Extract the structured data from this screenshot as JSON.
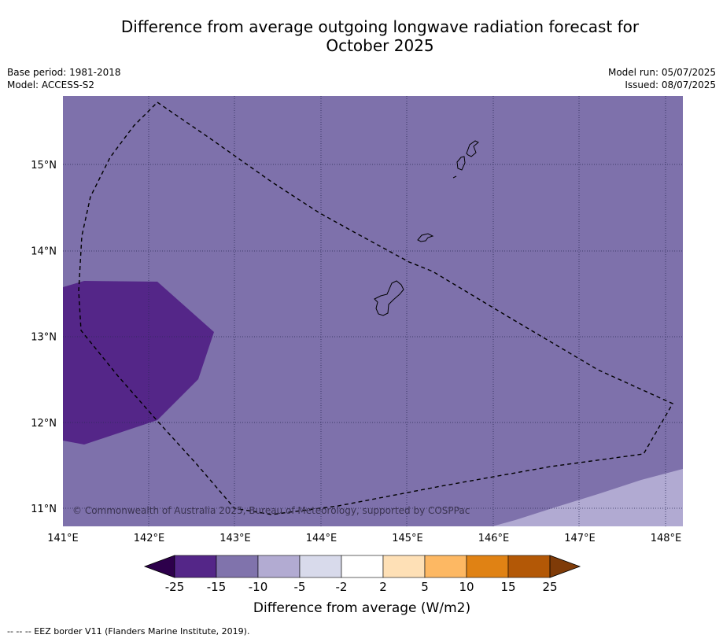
{
  "title": {
    "line1": "Difference from average outgoing longwave radiation forecast for",
    "line2": "October 2025"
  },
  "meta": {
    "base_period": "Base period: 1981-2018",
    "model": "Model: ACCESS-S2",
    "model_run": "Model run: 05/07/2025",
    "issued": "Issued: 08/07/2025"
  },
  "map": {
    "x_ticks": [
      "141°E",
      "142°E",
      "143°E",
      "144°E",
      "145°E",
      "146°E",
      "147°E",
      "148°E"
    ],
    "y_ticks": [
      "15°N",
      "14°N",
      "13°N",
      "12°N",
      "11°N"
    ],
    "copyright": "© Commonwealth of Australia 2025, Bureau of Meteorology, supported by COSPPac",
    "colors": {
      "background_class": "#7e71ab",
      "strong_negative_class": "#542688",
      "weak_negative_class": "#b1aad2"
    }
  },
  "colorbar": {
    "tick_labels": [
      "-25",
      "-15",
      "-10",
      "-5",
      "-2",
      "2",
      "5",
      "10",
      "15",
      "25"
    ],
    "colors": [
      "#2d004b",
      "#542688",
      "#8073ac",
      "#b2abd2",
      "#d8daeb",
      "#ffffff",
      "#fee0b6",
      "#fdb863",
      "#e08214",
      "#b35806",
      "#7f3b08"
    ],
    "label": "Difference from average (W/m2)"
  },
  "footnote": "--  --  -- EEZ border V11 (Flanders Marine Institute, 2019)."
}
